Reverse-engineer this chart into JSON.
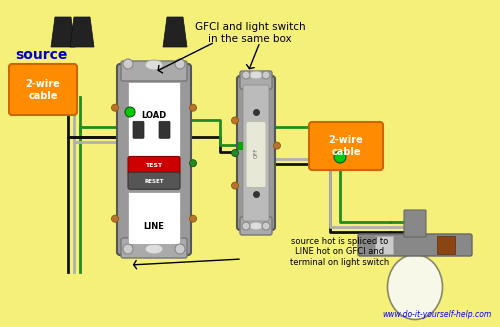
{
  "bg_color": "#f5f07a",
  "source_label": "source",
  "source_label_color": "#0000cc",
  "cable_label_1": "2-wire\ncable",
  "cable_label_2": "2-wire\ncable",
  "cable_box_color": "#ff8c00",
  "annotation_1": "GFCI and light switch\nin the same box",
  "annotation_2": "source hot is spliced to\nLINE hot on GFCI and\nterminal on light switch",
  "website": "www.do-it-yourself-help.com",
  "wire_black": "#111111",
  "wire_white": "#b0b0b0",
  "wire_green": "#228b22",
  "wire_bright_green": "#00cc00",
  "device_gray": "#999999",
  "inner_gray": "#bbbbbb"
}
